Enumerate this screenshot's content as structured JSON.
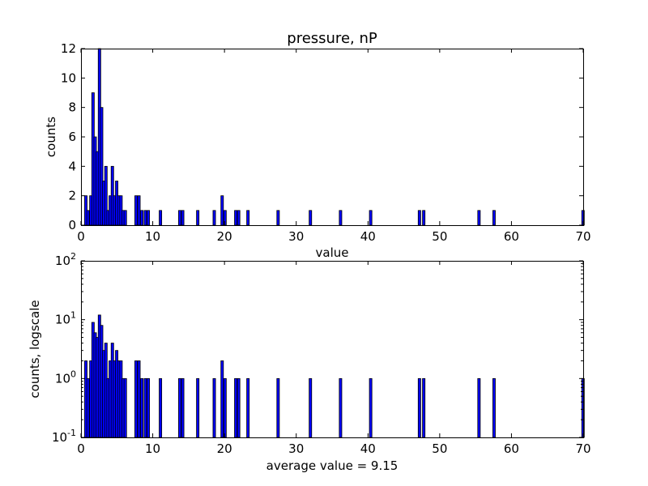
{
  "chart_data": [
    {
      "type": "bar",
      "title": "pressure, nP",
      "xlabel": "value",
      "ylabel": "counts",
      "xlim": [
        0,
        70
      ],
      "ylim": [
        0,
        12
      ],
      "yscale": "linear",
      "xticks": [
        0,
        10,
        20,
        30,
        40,
        50,
        60,
        70
      ],
      "yticks": [
        0,
        2,
        4,
        6,
        8,
        10,
        12
      ],
      "ytick_labels": [
        "0",
        "2",
        "4",
        "6",
        "8",
        "10",
        "12"
      ],
      "grid": false,
      "bar_color": "#0000ff",
      "bin_width": 0.35,
      "x": [
        0.5,
        0.8,
        1.2,
        1.5,
        1.8,
        2.1,
        2.4,
        2.7,
        3.0,
        3.3,
        3.6,
        3.9,
        4.2,
        4.5,
        4.8,
        5.1,
        5.4,
        5.7,
        6.0,
        7.5,
        7.9,
        8.3,
        8.8,
        9.2,
        10.9,
        13.6,
        14.0,
        16.1,
        18.4,
        19.5,
        19.9,
        21.4,
        21.8,
        23.1,
        27.3,
        31.8,
        36.0,
        40.2,
        47.0,
        47.6,
        55.3,
        57.4,
        69.8
      ],
      "values": [
        2,
        1,
        2,
        9,
        6,
        5,
        12,
        8,
        3,
        4,
        1,
        2,
        4,
        2,
        3,
        2,
        2,
        1,
        1,
        2,
        2,
        1,
        1,
        1,
        1,
        1,
        1,
        1,
        1,
        2,
        1,
        1,
        1,
        1,
        1,
        1,
        1,
        1,
        1,
        1,
        1,
        1,
        1
      ]
    },
    {
      "type": "bar",
      "title": "",
      "xlabel": "average value = 9.15",
      "ylabel": "counts, logscale",
      "xlim": [
        0,
        70
      ],
      "ylim": [
        0.1,
        100
      ],
      "yscale": "log",
      "xticks": [
        0,
        10,
        20,
        30,
        40,
        50,
        60,
        70
      ],
      "yticks": [
        0.1,
        1,
        10,
        100
      ],
      "ytick_labels": [
        {
          "base": "10",
          "exp": "-1"
        },
        {
          "base": "10",
          "exp": "0"
        },
        {
          "base": "10",
          "exp": "1"
        },
        {
          "base": "10",
          "exp": "2"
        }
      ],
      "grid": false,
      "bar_color": "#0000ff",
      "bin_width": 0.35,
      "x": [
        0.5,
        0.8,
        1.2,
        1.5,
        1.8,
        2.1,
        2.4,
        2.7,
        3.0,
        3.3,
        3.6,
        3.9,
        4.2,
        4.5,
        4.8,
        5.1,
        5.4,
        5.7,
        6.0,
        7.5,
        7.9,
        8.3,
        8.8,
        9.2,
        10.9,
        13.6,
        14.0,
        16.1,
        18.4,
        19.5,
        19.9,
        21.4,
        21.8,
        23.1,
        27.3,
        31.8,
        36.0,
        40.2,
        47.0,
        47.6,
        55.3,
        57.4,
        69.8
      ],
      "values": [
        2,
        1,
        2,
        9,
        6,
        5,
        12,
        8,
        3,
        4,
        1,
        2,
        4,
        2,
        3,
        2,
        2,
        1,
        1,
        2,
        2,
        1,
        1,
        1,
        1,
        1,
        1,
        1,
        1,
        2,
        1,
        1,
        1,
        1,
        1,
        1,
        1,
        1,
        1,
        1,
        1,
        1,
        1
      ]
    }
  ]
}
